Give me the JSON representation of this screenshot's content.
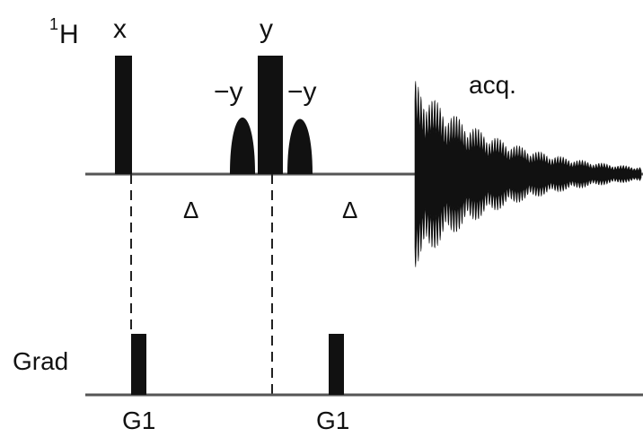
{
  "channel_1h": {
    "superscript": "1",
    "nucleus": "H"
  },
  "pulses": {
    "first_phase": "x",
    "center_phase": "y",
    "left_shaped_phase": "−y",
    "right_shaped_phase": "−y"
  },
  "delays": {
    "first": "Δ",
    "second": "Δ"
  },
  "acquisition": {
    "label": "acq."
  },
  "gradient_channel": {
    "label": "Grad",
    "first_pulse": "G1",
    "second_pulse": "G1"
  },
  "colors": {
    "ink": "#111111",
    "baseline": "#555555"
  }
}
